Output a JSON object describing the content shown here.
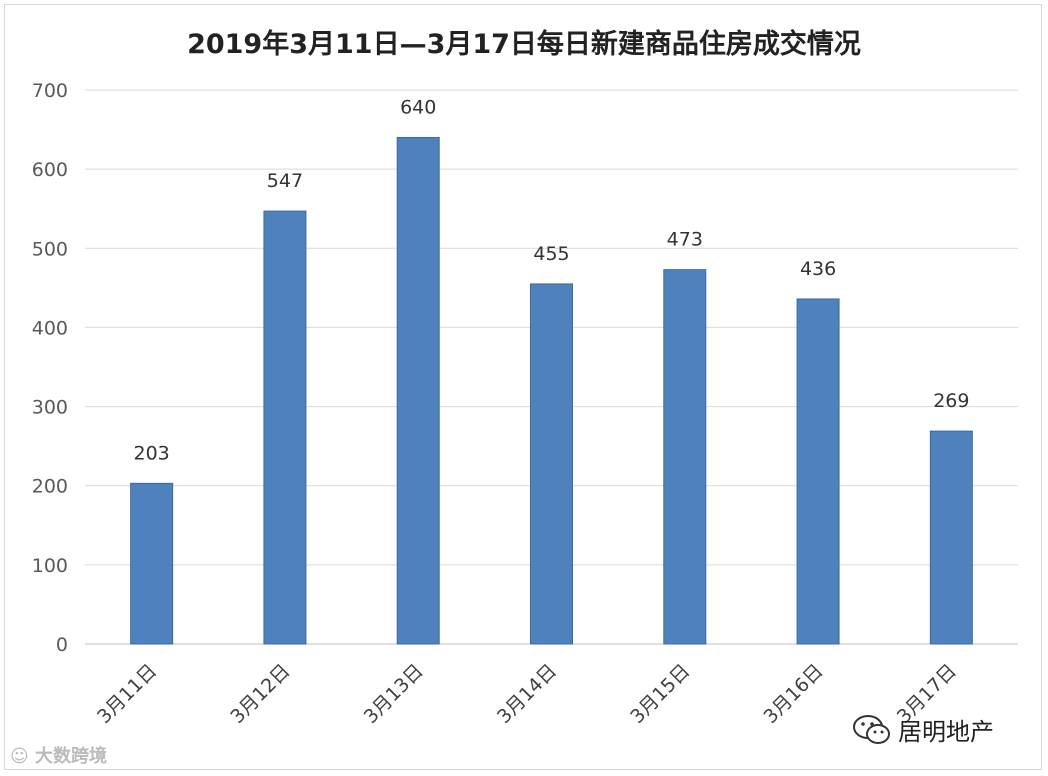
{
  "title": "2019年3月11日—3月17日每日新建商品住房成交情况",
  "chart_data": {
    "type": "bar",
    "title": "2019年3月11日—3月17日每日新建商品住房成交情况",
    "categories": [
      "3月11日",
      "3月12日",
      "3月13日",
      "3月14日",
      "3月15日",
      "3月16日",
      "3月17日"
    ],
    "values": [
      203,
      547,
      640,
      455,
      473,
      436,
      269
    ],
    "y_ticks": [
      "0",
      "100",
      "200",
      "300",
      "400",
      "500",
      "600",
      "700"
    ],
    "ylim": [
      0,
      700
    ],
    "grid": true,
    "bar_color": "#4f81bd"
  },
  "watermarks": {
    "left": "大数跨境",
    "right": "居明地产"
  }
}
